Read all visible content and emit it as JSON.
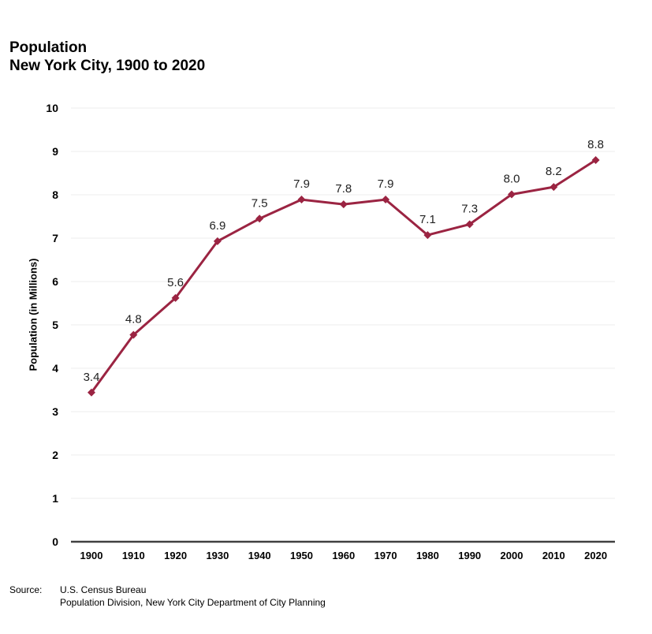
{
  "title": "Population",
  "subtitle": "New York City, 1900 to 2020",
  "source": {
    "label": "Source:",
    "line1": "U.S. Census Bureau",
    "line2": "Population Division, New York City Department of City Planning"
  },
  "colors": {
    "series": "#9b2442",
    "axis": "#404040",
    "grid": "#ececec"
  },
  "chart_data": {
    "type": "line",
    "title": "Population",
    "subtitle": "New York City, 1900 to 2020",
    "xlabel": "",
    "ylabel": "Population (in Millions)",
    "categories": [
      "1900",
      "1910",
      "1920",
      "1930",
      "1940",
      "1950",
      "1960",
      "1970",
      "1980",
      "1990",
      "2000",
      "2010",
      "2020"
    ],
    "series": [
      {
        "values": [
          3.44,
          4.77,
          5.62,
          6.93,
          7.45,
          7.89,
          7.78,
          7.89,
          7.07,
          7.32,
          8.01,
          8.18,
          8.8
        ],
        "labels": [
          "3.4",
          "4.8",
          "5.6",
          "6.9",
          "7.5",
          "7.9",
          "7.8",
          "7.9",
          "7.1",
          "7.3",
          "8.0",
          "8.2",
          "8.8"
        ]
      }
    ],
    "ylim": [
      0,
      10
    ],
    "yticks": [
      0,
      1,
      2,
      3,
      4,
      5,
      6,
      7,
      8,
      9,
      10
    ],
    "grid": true,
    "legend": "none",
    "marker": "diamond"
  }
}
